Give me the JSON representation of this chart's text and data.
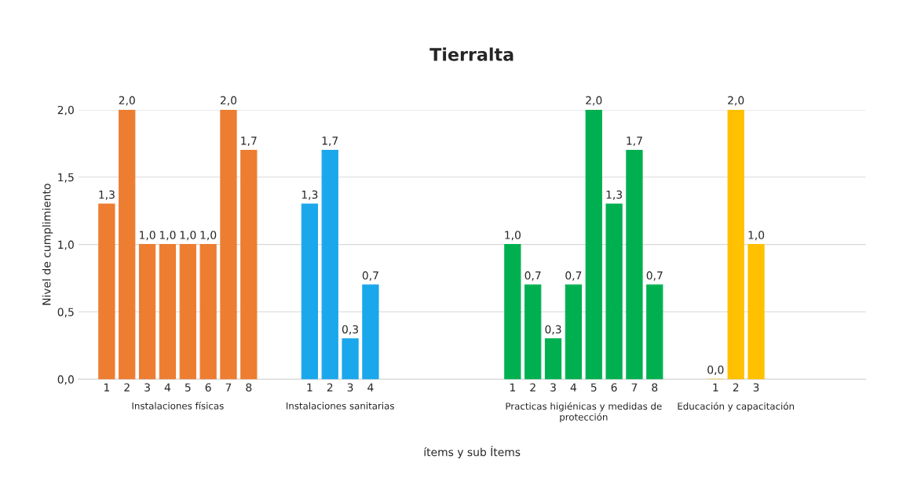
{
  "chart_data": {
    "type": "bar",
    "title": "Tierralta",
    "xlabel": "ítems y sub Ítems",
    "ylabel": "Nivel de cumplimiento",
    "categories": [
      "1",
      "2",
      "3",
      "4",
      "5",
      "6",
      "7",
      "8",
      null,
      null,
      "1",
      "2",
      "3",
      "4",
      null,
      null,
      null,
      null,
      null,
      null,
      "1",
      "2",
      "3",
      "4",
      "5",
      "6",
      "7",
      "8",
      null,
      null,
      "1",
      "2",
      "3",
      null,
      null,
      null,
      null,
      null
    ],
    "series": [
      {
        "name": "Instalaciones físicas",
        "color": "#ed7d31",
        "values": [
          1.3,
          2.0,
          1.0,
          1.0,
          1.0,
          1.0,
          2.0,
          1.7,
          null,
          null,
          null,
          null,
          null,
          null,
          null,
          null,
          null,
          null,
          null,
          null,
          null,
          null,
          null,
          null,
          null,
          null,
          null,
          null,
          null,
          null,
          null,
          null,
          null,
          null,
          null,
          null,
          null,
          null
        ],
        "value_labels": [
          "1,3",
          "2,0",
          "1,0",
          "1,0",
          "1,0",
          "1,0",
          "2,0",
          "1,7",
          null,
          null,
          null,
          null,
          null,
          null,
          null,
          null,
          null,
          null,
          null,
          null,
          null,
          null,
          null,
          null,
          null,
          null,
          null,
          null,
          null,
          null,
          null,
          null,
          null,
          null,
          null,
          null,
          null,
          null
        ]
      },
      {
        "name": "Instalaciones sanitarias",
        "color": "#1aa7ec",
        "values": [
          null,
          null,
          null,
          null,
          null,
          null,
          null,
          null,
          null,
          null,
          1.3,
          1.7,
          0.3,
          0.7,
          null,
          null,
          null,
          null,
          null,
          null,
          null,
          null,
          null,
          null,
          null,
          null,
          null,
          null,
          null,
          null,
          null,
          null,
          null,
          null,
          null,
          null,
          null,
          null
        ],
        "value_labels": [
          null,
          null,
          null,
          null,
          null,
          null,
          null,
          null,
          null,
          null,
          "1,3",
          "1,7",
          "0,3",
          "0,7",
          null,
          null,
          null,
          null,
          null,
          null,
          null,
          null,
          null,
          null,
          null,
          null,
          null,
          null,
          null,
          null,
          null,
          null,
          null,
          null,
          null,
          null,
          null,
          null
        ]
      },
      {
        "name": "Practicas higiénicas y medidas de\nprotección",
        "color": "#00b050",
        "values": [
          null,
          null,
          null,
          null,
          null,
          null,
          null,
          null,
          null,
          null,
          null,
          null,
          null,
          null,
          null,
          null,
          null,
          null,
          null,
          null,
          1.0,
          0.7,
          0.3,
          0.7,
          2.0,
          1.3,
          1.7,
          0.7,
          null,
          null,
          null,
          null,
          null,
          null,
          null,
          null,
          null,
          null
        ],
        "value_labels": [
          null,
          null,
          null,
          null,
          null,
          null,
          null,
          null,
          null,
          null,
          null,
          null,
          null,
          null,
          null,
          null,
          null,
          null,
          null,
          null,
          "1,0",
          "0,7",
          "0,3",
          "0,7",
          "2,0",
          "1,3",
          "1,7",
          "0,7",
          null,
          null,
          null,
          null,
          null,
          null,
          null,
          null,
          null,
          null
        ]
      },
      {
        "name": "Educación y capacitación",
        "color": "#ffc000",
        "values": [
          null,
          null,
          null,
          null,
          null,
          null,
          null,
          null,
          null,
          null,
          null,
          null,
          null,
          null,
          null,
          null,
          null,
          null,
          null,
          null,
          null,
          null,
          null,
          null,
          null,
          null,
          null,
          null,
          null,
          null,
          0.0,
          2.0,
          1.0,
          null,
          null,
          null,
          null,
          null
        ],
        "value_labels": [
          null,
          null,
          null,
          null,
          null,
          null,
          null,
          null,
          null,
          null,
          null,
          null,
          null,
          null,
          null,
          null,
          null,
          null,
          null,
          null,
          null,
          null,
          null,
          null,
          null,
          null,
          null,
          null,
          null,
          null,
          "0,0",
          "2,0",
          "1,0",
          null,
          null,
          null,
          null,
          null
        ]
      }
    ],
    "ylim": [
      0,
      2.0
    ],
    "yticks": [
      {
        "value": 0,
        "label": "0,0"
      },
      {
        "value": 0.5,
        "label": "0,5"
      },
      {
        "value": 1,
        "label": "1,0"
      },
      {
        "value": 1.5,
        "label": "1,5"
      },
      {
        "value": 2,
        "label": "2,0"
      }
    ],
    "grid": "y",
    "legend": false
  }
}
